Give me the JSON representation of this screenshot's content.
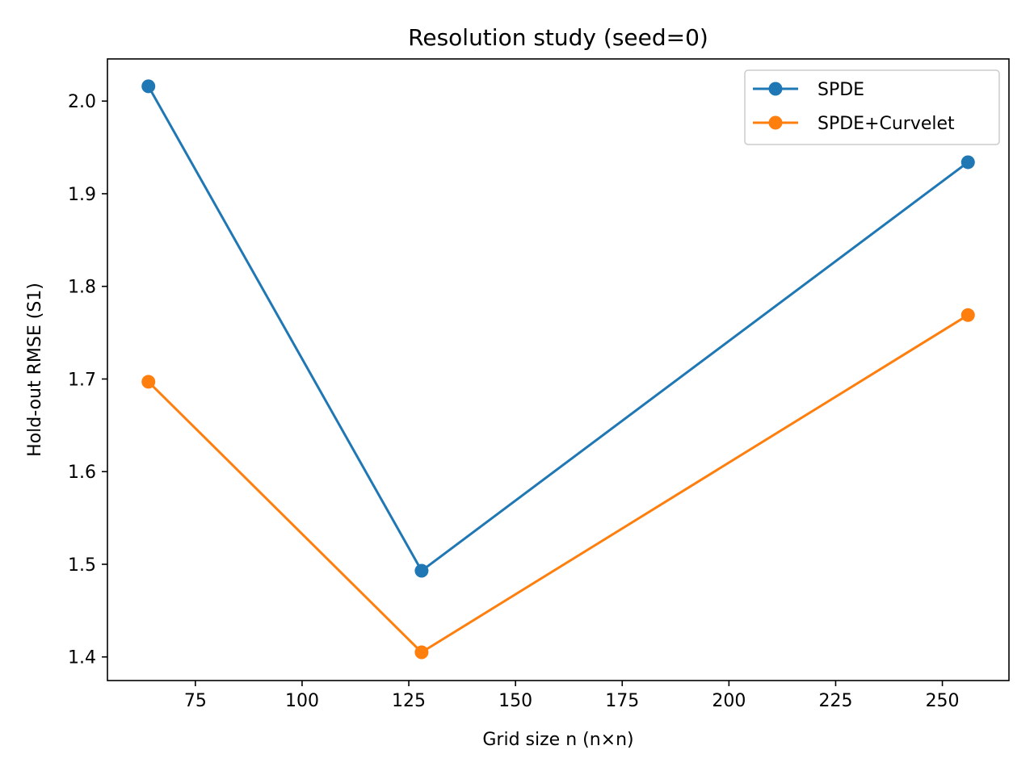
{
  "chart_data": {
    "type": "line",
    "title": "Resolution study (seed=0)",
    "xlabel": "Grid size n (n×n)",
    "ylabel": "Hold-out RMSE (S1)",
    "x": [
      64,
      128,
      256
    ],
    "series": [
      {
        "name": "SPDE",
        "color": "#1f77b4",
        "values": [
          2.016,
          1.493,
          1.934
        ]
      },
      {
        "name": "SPDE+Curvelet",
        "color": "#ff7f0e",
        "values": [
          1.697,
          1.405,
          1.769
        ]
      }
    ],
    "xlim": [
      54.4,
      265.6
    ],
    "ylim": [
      1.3745,
      2.0455
    ],
    "xticks": [
      75,
      100,
      125,
      150,
      175,
      200,
      225,
      250
    ],
    "xtick_labels": [
      "75",
      "100",
      "125",
      "150",
      "175",
      "200",
      "225",
      "250"
    ],
    "yticks": [
      1.4,
      1.5,
      1.6,
      1.7,
      1.8,
      1.9,
      2.0
    ],
    "ytick_labels": [
      "1.4",
      "1.5",
      "1.6",
      "1.7",
      "1.8",
      "1.9",
      "2.0"
    ],
    "legend_position": "top-right",
    "grid": false
  }
}
